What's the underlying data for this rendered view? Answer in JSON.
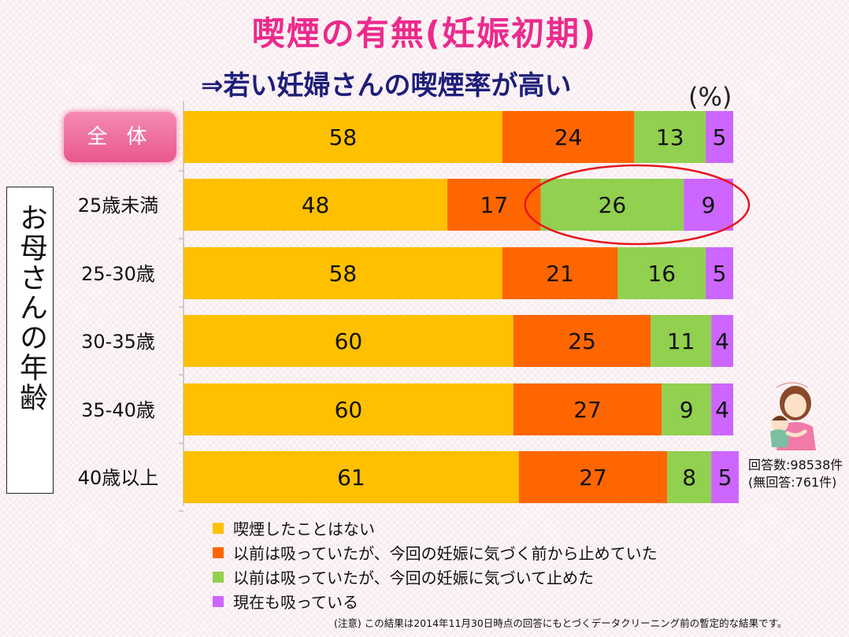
{
  "title": "喫煙の有無(妊娠初期)",
  "subtitle": "⇒若い妊婦さんの喫煙率が高い",
  "unit": "(%)",
  "axis_title": "お母さんの年齢",
  "response_note": {
    "count": "回答数:98538件",
    "no_answer": "(無回答:761件)"
  },
  "footnote": "(注意) この結果は2014年11月30日時点の回答にもとづくデータクリーニング前の暫定的な結果です。",
  "illustration_icon": "mother-holding-baby-icon",
  "chart_data": {
    "type": "bar",
    "orientation": "horizontal",
    "stacked": true,
    "title": "喫煙の有無(妊娠初期)",
    "xlabel": "(%)",
    "ylabel": "お母さんの年齢",
    "xlim": [
      0,
      100
    ],
    "categories": [
      "全 体",
      "25歳未満",
      "25-30歳",
      "30-35歳",
      "35-40歳",
      "40歳以上"
    ],
    "series": [
      {
        "name": "喫煙したことはない",
        "color": "#ffc000",
        "values": [
          58,
          48,
          58,
          60,
          60,
          61
        ]
      },
      {
        "name": "以前は吸っていたが、今回の妊娠に気づく前から止めていた",
        "color": "#ff6600",
        "values": [
          24,
          17,
          21,
          25,
          27,
          27
        ]
      },
      {
        "name": "以前は吸っていたが、今回の妊娠に気づいて止めた",
        "color": "#92d050",
        "values": [
          13,
          26,
          16,
          11,
          9,
          8
        ]
      },
      {
        "name": "現在も吸っている",
        "color": "#cc66ff",
        "values": [
          5,
          9,
          5,
          4,
          4,
          5
        ]
      }
    ],
    "highlight": {
      "category_index": 1,
      "series_indices": [
        2,
        3
      ],
      "color": "#e8141e"
    },
    "legend_position": "bottom"
  }
}
